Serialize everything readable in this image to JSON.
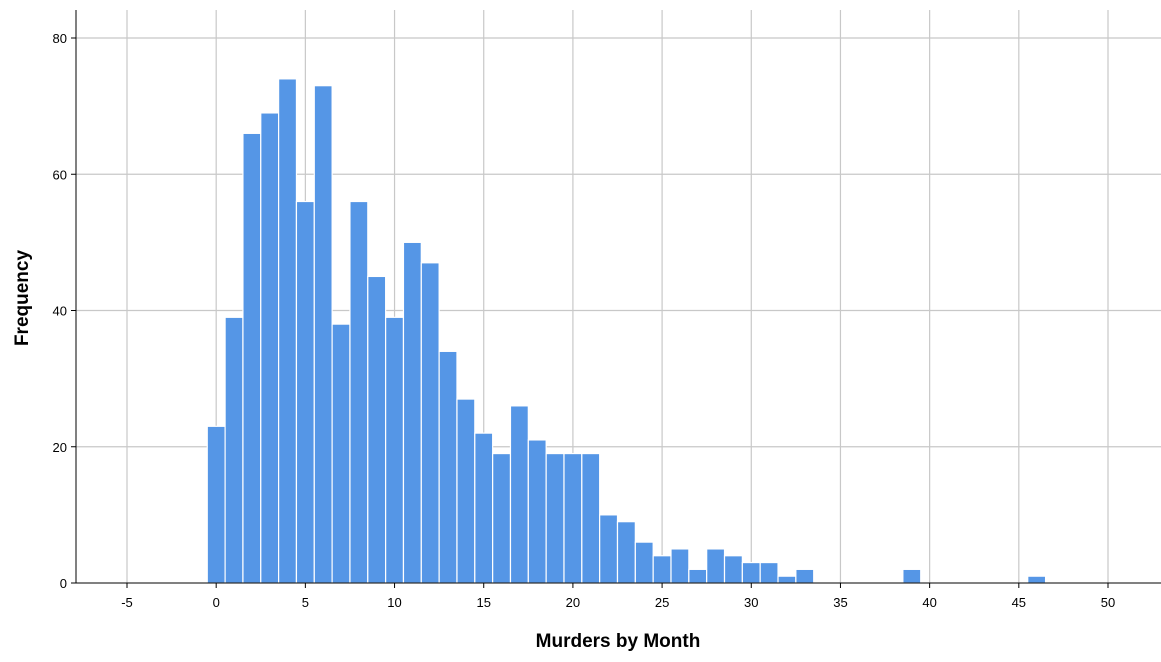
{
  "chart_data": {
    "type": "bar",
    "subtype": "histogram",
    "title": "",
    "xlabel": "Murders by Month",
    "ylabel": "Frequency",
    "xlim": [
      -10,
      52
    ],
    "ylim": [
      0,
      84
    ],
    "xticks": [
      -5,
      0,
      5,
      10,
      15,
      20,
      25,
      30,
      35,
      40,
      45,
      50
    ],
    "yticks": [
      0,
      20,
      40,
      60,
      80
    ],
    "bin_width": 1,
    "bin_starts": [
      0,
      1,
      2,
      3,
      4,
      5,
      6,
      7,
      8,
      9,
      10,
      11,
      12,
      13,
      14,
      15,
      16,
      17,
      18,
      19,
      20,
      21,
      22,
      23,
      24,
      25,
      26,
      27,
      28,
      29,
      30,
      31,
      32,
      33,
      39,
      46
    ],
    "values": [
      23,
      39,
      66,
      69,
      74,
      56,
      73,
      38,
      56,
      45,
      39,
      50,
      47,
      34,
      27,
      22,
      19,
      26,
      21,
      19,
      19,
      19,
      10,
      9,
      6,
      4,
      5,
      2,
      5,
      4,
      3,
      3,
      1,
      2,
      2,
      1
    ],
    "grid": true,
    "colors": {
      "bar_fill": "#5596E6",
      "bar_edge": "#FFFFFF",
      "grid": "#C8C8C8",
      "axis": "#000000"
    }
  }
}
